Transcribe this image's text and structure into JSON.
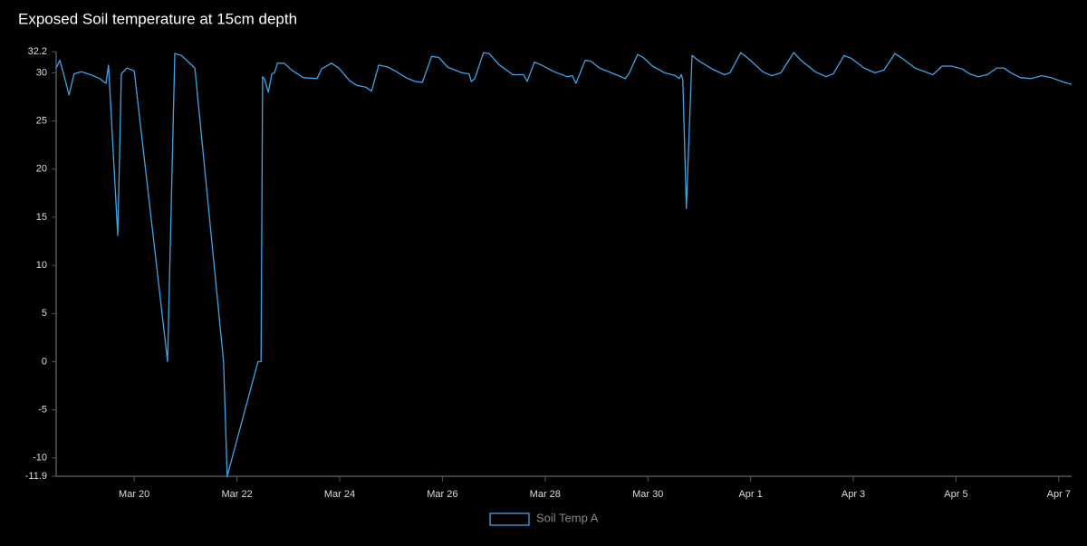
{
  "chart_data": {
    "type": "line",
    "title": "Exposed Soil temperature at 15cm depth",
    "x": [
      18.48,
      18.55,
      18.62,
      18.73,
      18.83,
      18.97,
      19.15,
      19.33,
      19.45,
      19.5,
      19.68,
      19.75,
      19.86,
      20.0,
      20.65,
      20.79,
      20.92,
      21.18,
      21.74,
      21.81,
      22.41,
      22.47,
      22.5,
      22.54,
      22.61,
      22.68,
      22.73,
      22.79,
      22.92,
      23.06,
      23.29,
      23.56,
      23.65,
      23.84,
      23.98,
      24.19,
      24.33,
      24.51,
      24.62,
      24.76,
      24.94,
      25.11,
      25.29,
      25.47,
      25.61,
      25.79,
      25.93,
      26.1,
      26.38,
      26.52,
      26.56,
      26.63,
      26.8,
      26.91,
      27.09,
      27.37,
      27.58,
      27.65,
      27.79,
      27.93,
      28.18,
      28.43,
      28.53,
      28.6,
      28.78,
      28.89,
      29.06,
      29.38,
      29.56,
      29.63,
      29.8,
      29.91,
      30.09,
      30.33,
      30.54,
      30.61,
      30.65,
      30.68,
      30.75,
      30.86,
      31.0,
      31.25,
      31.49,
      31.6,
      31.81,
      31.95,
      32.24,
      32.41,
      32.59,
      32.84,
      32.98,
      33.26,
      33.47,
      33.61,
      33.82,
      33.96,
      34.21,
      34.42,
      34.6,
      34.81,
      34.95,
      35.2,
      35.55,
      35.73,
      35.91,
      36.12,
      36.26,
      36.43,
      36.61,
      36.79,
      36.93,
      37.07,
      37.25,
      37.46,
      37.67,
      37.85,
      38.06,
      38.25
    ],
    "series": [
      {
        "name": "Soil Temp A",
        "color": "#3ea4e6",
        "values": [
          30.5,
          31.3,
          30,
          27.7,
          29.9,
          30.1,
          29.8,
          29.4,
          28.9,
          30.8,
          13.1,
          29.9,
          30.5,
          30.2,
          0,
          32,
          31.8,
          30.5,
          0,
          -11.9,
          0,
          0,
          29.6,
          29.3,
          28,
          29.9,
          30,
          31,
          31,
          30.3,
          29.5,
          29.4,
          30.4,
          31,
          30.5,
          29.2,
          28.7,
          28.5,
          28.1,
          30.8,
          30.6,
          30.1,
          29.5,
          29.1,
          29,
          31.7,
          31.6,
          30.6,
          30,
          29.9,
          29.1,
          29.4,
          32.1,
          32,
          30.9,
          29.8,
          29.8,
          29.1,
          31.1,
          30.8,
          30.1,
          29.6,
          29.7,
          28.9,
          31.3,
          31.2,
          30.5,
          29.8,
          29.4,
          29.9,
          31.9,
          31.6,
          30.7,
          30,
          29.7,
          29.4,
          29.8,
          29.3,
          15.9,
          31.8,
          31.2,
          30.4,
          29.8,
          30,
          32.1,
          31.5,
          30.1,
          29.7,
          30,
          32.1,
          31.3,
          30.1,
          29.6,
          29.9,
          31.8,
          31.5,
          30.5,
          30,
          30.3,
          32,
          31.5,
          30.5,
          29.8,
          30.7,
          30.7,
          30.4,
          29.9,
          29.6,
          29.8,
          30.5,
          30.5,
          30,
          29.5,
          29.4,
          29.7,
          29.5,
          29.1,
          28.8
        ]
      }
    ],
    "xlim": [
      18.48,
      38.25
    ],
    "xticks": [
      {
        "value": 20,
        "label": "Mar 20"
      },
      {
        "value": 22,
        "label": "Mar 22"
      },
      {
        "value": 24,
        "label": "Mar 24"
      },
      {
        "value": 26,
        "label": "Mar 26"
      },
      {
        "value": 28,
        "label": "Mar 28"
      },
      {
        "value": 30,
        "label": "Mar 30"
      },
      {
        "value": 32,
        "label": "Apr 1"
      },
      {
        "value": 34,
        "label": "Apr 3"
      },
      {
        "value": 36,
        "label": "Apr 5"
      },
      {
        "value": 38,
        "label": "Apr 7"
      }
    ],
    "ylim": [
      -11.9,
      32.2
    ],
    "yticks": [
      -11.9,
      -10,
      -5,
      0,
      5,
      10,
      15,
      20,
      25,
      30,
      32.2
    ],
    "legend": "bottom"
  }
}
